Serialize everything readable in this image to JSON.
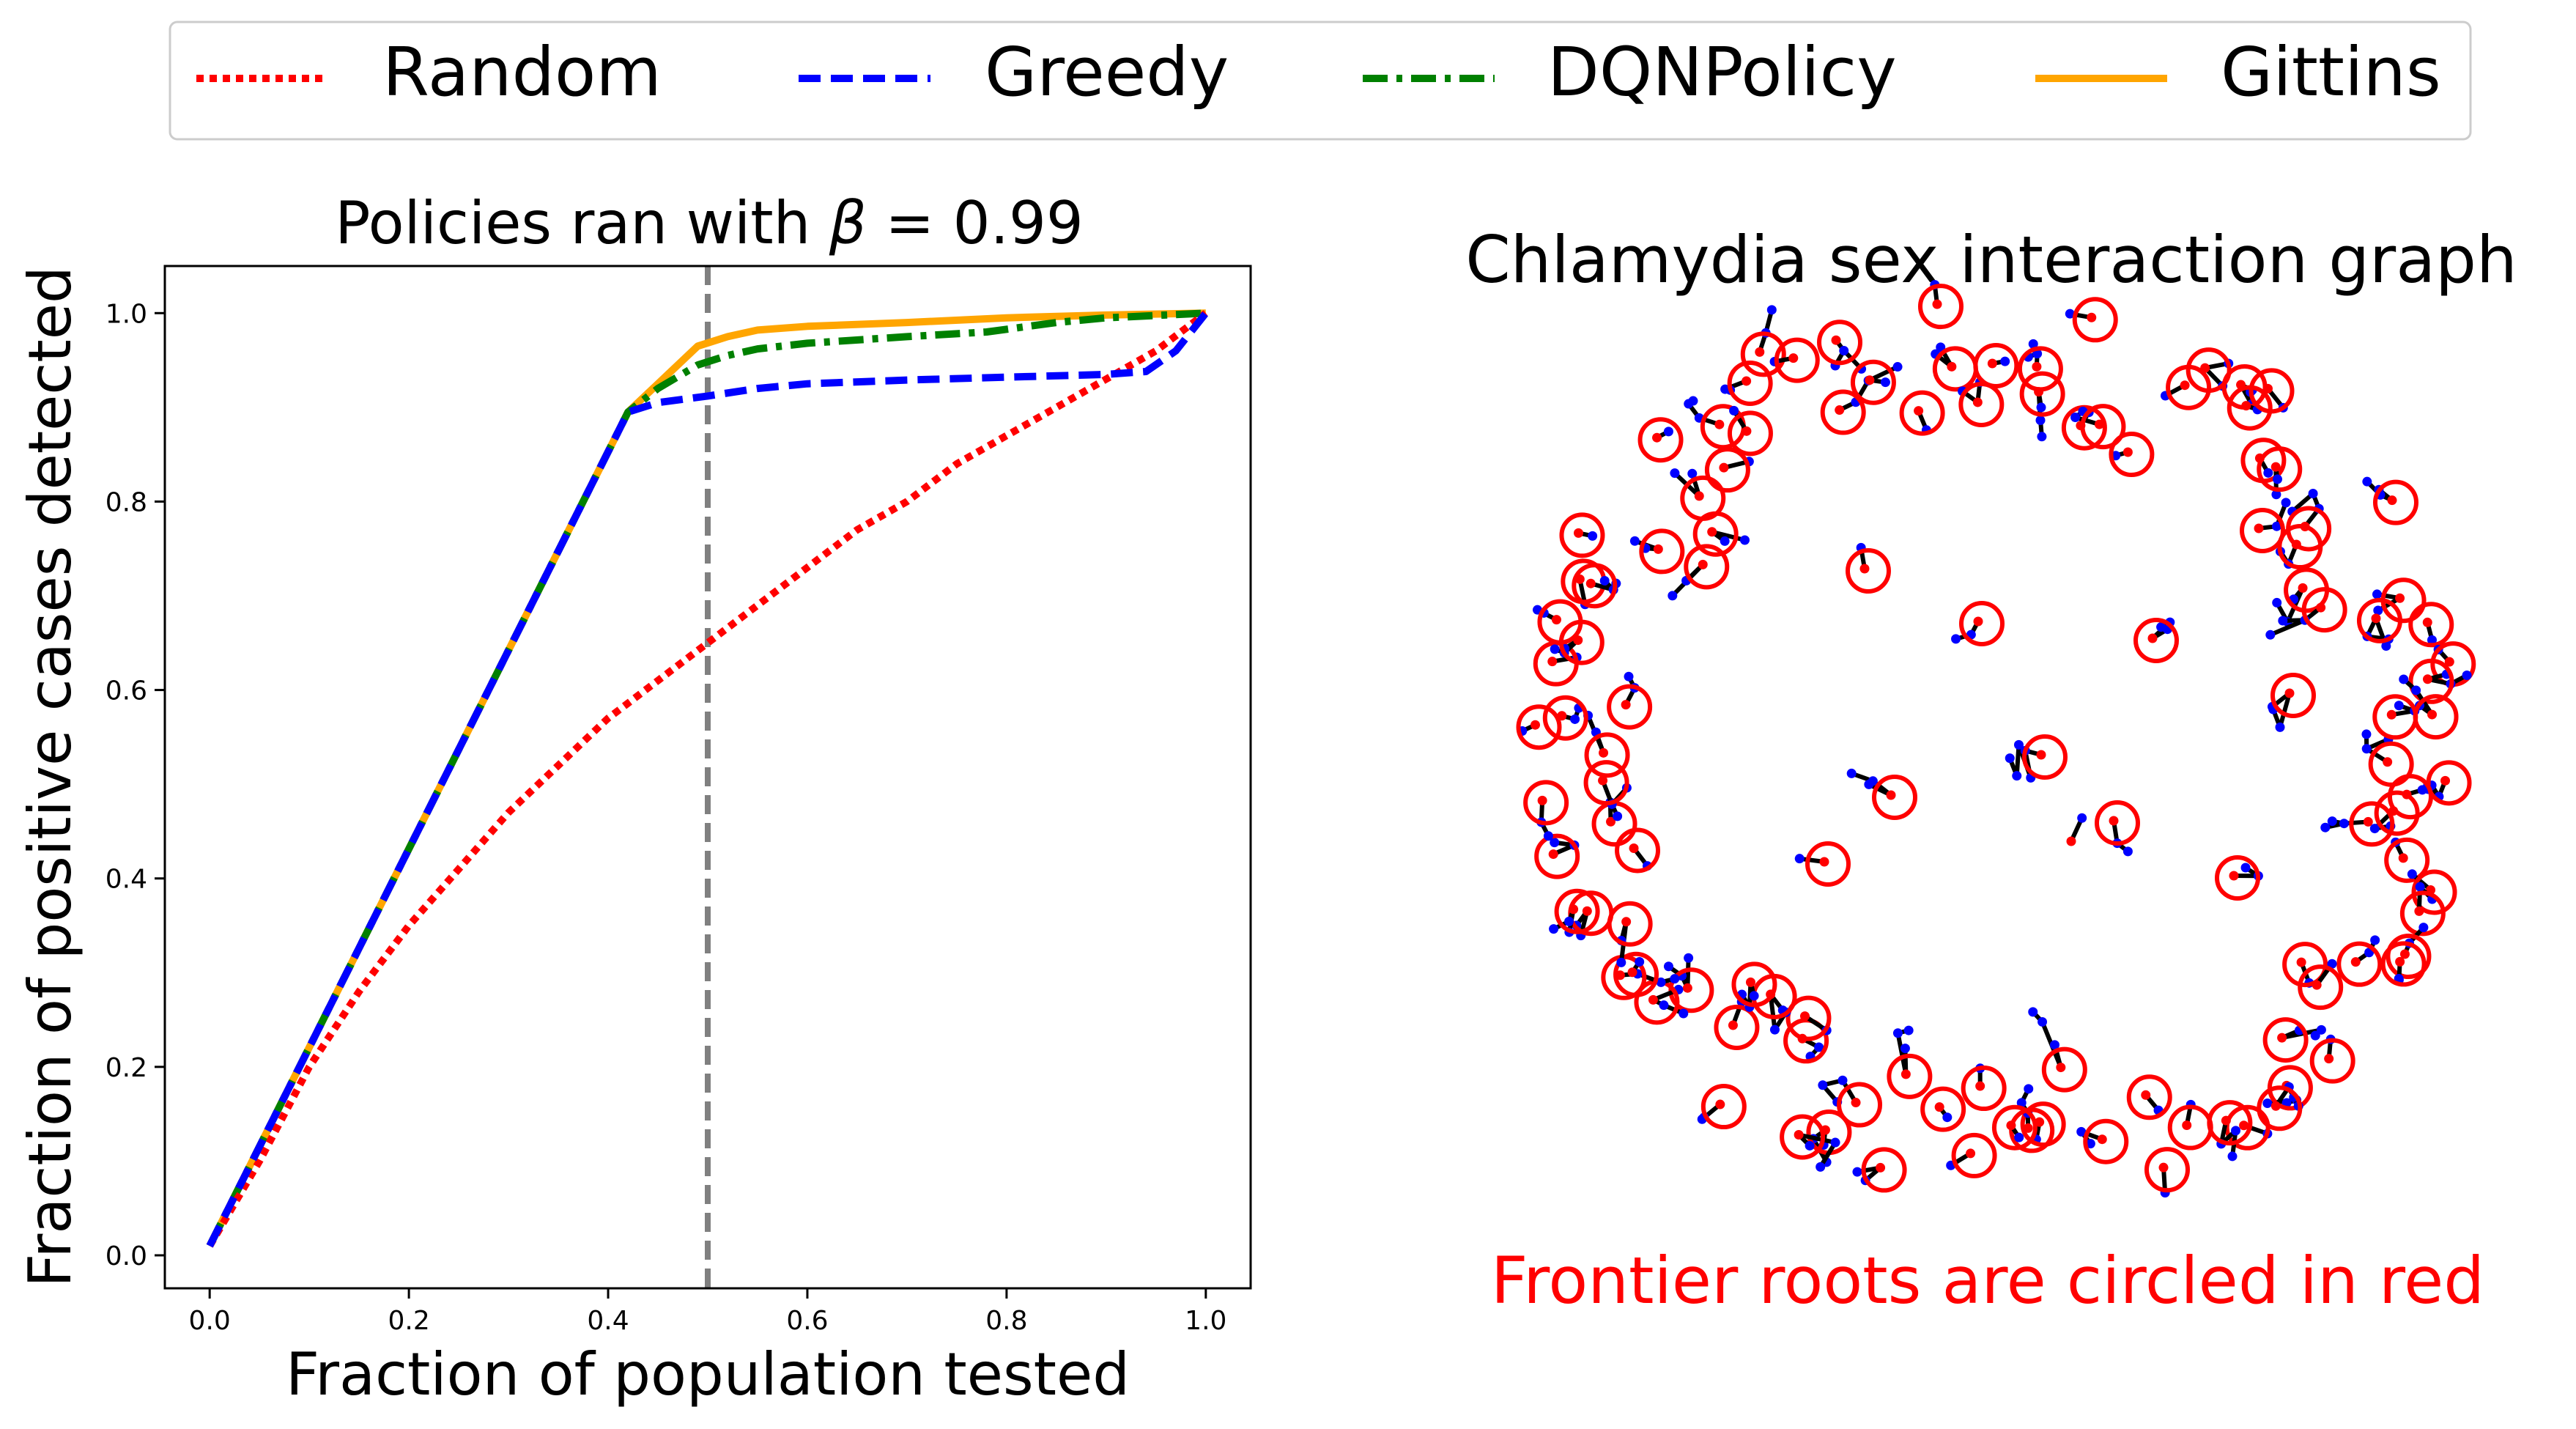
{
  "legend": {
    "entries": [
      {
        "label": "Random",
        "color": "#ff0000",
        "style": "dotted"
      },
      {
        "label": "Greedy",
        "color": "#0000ff",
        "style": "dashed"
      },
      {
        "label": "DQNPolicy",
        "color": "#008000",
        "style": "dashdot"
      },
      {
        "label": "Gittins",
        "color": "#ffa500",
        "style": "solid"
      }
    ]
  },
  "chart_data": [
    {
      "type": "line",
      "title": "Policies ran with β =  0.99",
      "title_prefix": "Policies ran with ",
      "title_symbol": "β",
      "title_suffix": " =  0.99",
      "xlabel": "Fraction of population tested",
      "ylabel": "Fraction of positive cases detected",
      "xlim": [
        -0.045,
        1.045
      ],
      "ylim": [
        -0.035,
        1.05
      ],
      "xticks": [
        0.0,
        0.2,
        0.4,
        0.6,
        0.8,
        1.0
      ],
      "xtick_labels": [
        "0.0",
        "0.2",
        "0.4",
        "0.6",
        "0.8",
        "1.0"
      ],
      "yticks": [
        0.0,
        0.2,
        0.4,
        0.6,
        0.8,
        1.0
      ],
      "ytick_labels": [
        "0.0",
        "0.2",
        "0.4",
        "0.6",
        "0.8",
        "1.0"
      ],
      "vline": {
        "x": 0.5,
        "color": "#808080",
        "style": "dashed"
      },
      "series": [
        {
          "name": "Random",
          "color": "#ff0000",
          "style": "dotted",
          "x": [
            0.0,
            0.05,
            0.1,
            0.15,
            0.2,
            0.25,
            0.3,
            0.35,
            0.4,
            0.45,
            0.5,
            0.55,
            0.6,
            0.65,
            0.7,
            0.75,
            0.8,
            0.85,
            0.9,
            0.95,
            1.0
          ],
          "y": [
            0.01,
            0.1,
            0.2,
            0.28,
            0.35,
            0.41,
            0.47,
            0.52,
            0.57,
            0.61,
            0.65,
            0.69,
            0.73,
            0.77,
            0.8,
            0.84,
            0.87,
            0.9,
            0.93,
            0.96,
            1.0
          ]
        },
        {
          "name": "Greedy",
          "color": "#0000ff",
          "style": "dashed",
          "x": [
            0.0,
            0.42,
            0.45,
            0.5,
            0.55,
            0.6,
            0.7,
            0.8,
            0.9,
            0.94,
            0.97,
            1.0
          ],
          "y": [
            0.01,
            0.895,
            0.905,
            0.912,
            0.92,
            0.925,
            0.929,
            0.932,
            0.935,
            0.938,
            0.96,
            1.0
          ]
        },
        {
          "name": "DQNPolicy",
          "color": "#008000",
          "style": "dashdot",
          "x": [
            0.0,
            0.42,
            0.45,
            0.49,
            0.52,
            0.55,
            0.6,
            0.7,
            0.78,
            0.85,
            0.9,
            1.0
          ],
          "y": [
            0.01,
            0.895,
            0.92,
            0.945,
            0.955,
            0.962,
            0.968,
            0.975,
            0.98,
            0.99,
            0.995,
            1.0
          ]
        },
        {
          "name": "Gittins",
          "color": "#ffa500",
          "style": "solid",
          "x": [
            0.0,
            0.42,
            0.45,
            0.49,
            0.52,
            0.55,
            0.6,
            0.7,
            0.8,
            0.9,
            1.0
          ],
          "y": [
            0.01,
            0.895,
            0.925,
            0.965,
            0.975,
            0.982,
            0.986,
            0.99,
            0.995,
            0.998,
            1.0
          ]
        }
      ]
    },
    {
      "type": "network",
      "title": "Chlamydia sex interaction graph",
      "annotation": "Frontier roots are circled in red",
      "root_node_color": "#ff0000",
      "node_color": "#0000ff",
      "edge_color": "#000000",
      "component_count": 118,
      "ring_components": 108,
      "center_components": 10
    }
  ]
}
